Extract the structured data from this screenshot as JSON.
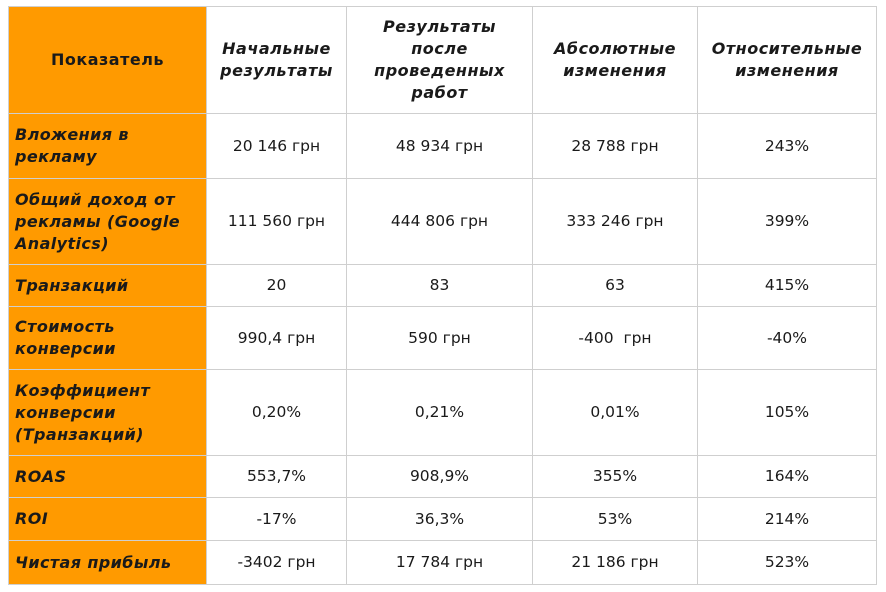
{
  "table": {
    "headers": [
      "Показатель",
      "Начальные результаты",
      "Результаты после проведенных работ",
      "Абсолютные изменения",
      "Относительные изменения"
    ],
    "rows": [
      {
        "label": "Вложения в рекламу",
        "cells": [
          "20 146 грн",
          "48 934 грн",
          "28 788 грн",
          "243%"
        ]
      },
      {
        "label": "Общий доход от рекламы (Google Analytics)",
        "cells": [
          "111 560 грн",
          "444 806 грн",
          "333 246 грн",
          "399%"
        ]
      },
      {
        "label": "Транзакций",
        "cells": [
          "20",
          "83",
          "63",
          "415%"
        ]
      },
      {
        "label": "Стоимость конверсии",
        "cells": [
          "990,4 грн",
          "590 грн",
          "-400  грн",
          "-40%"
        ]
      },
      {
        "label": "Коэффициент конверсии (Транзакций)",
        "cells": [
          "0,20%",
          "0,21%",
          "0,01%",
          "105%"
        ]
      },
      {
        "label": "ROAS",
        "cells": [
          "553,7%",
          "908,9%",
          "355%",
          "164%"
        ]
      },
      {
        "label": "ROI",
        "cells": [
          "-17%",
          "36,3%",
          "53%",
          "214%"
        ]
      },
      {
        "label": "Чистая прибыль",
        "cells": [
          "-3402 грн",
          "17 784 грн",
          "21 186 грн",
          "523%"
        ]
      }
    ]
  },
  "colors": {
    "accent": "#ff9a00",
    "border": "#cfcfcf",
    "text": "#1a1a1a"
  }
}
